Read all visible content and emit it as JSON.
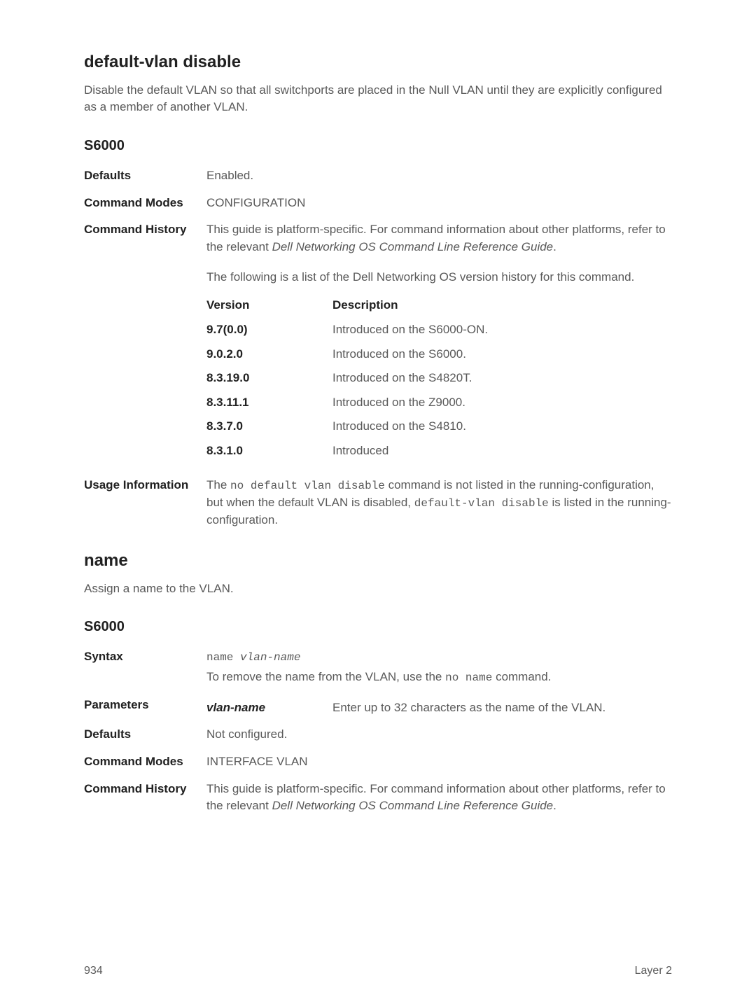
{
  "section1": {
    "title": "default-vlan disable",
    "intro": "Disable the default VLAN so that all switchports are placed in the Null VLAN until they are explicitly configured as a member of another VLAN.",
    "platform": "S6000",
    "defaults_label": "Defaults",
    "defaults_value": "Enabled.",
    "modes_label": "Command Modes",
    "modes_value": "CONFIGURATION",
    "history_label": "Command History",
    "history_intro_1": "This guide is platform-specific. For command information about other platforms, refer to the relevant ",
    "history_intro_italic": "Dell Networking OS Command Line Reference Guide",
    "history_intro_2": ".",
    "history_intro_3": "The following is a list of the Dell Networking OS version history for this command.",
    "vh_header_version": "Version",
    "vh_header_desc": "Description",
    "versions": [
      {
        "v": "9.7(0.0)",
        "d": "Introduced on the S6000-ON."
      },
      {
        "v": "9.0.2.0",
        "d": "Introduced on the S6000."
      },
      {
        "v": "8.3.19.0",
        "d": "Introduced on the S4820T."
      },
      {
        "v": "8.3.11.1",
        "d": "Introduced on the Z9000."
      },
      {
        "v": "8.3.7.0",
        "d": "Introduced on the S4810."
      },
      {
        "v": "8.3.1.0",
        "d": "Introduced"
      }
    ],
    "usage_label": "Usage Information",
    "usage_text_1": "The ",
    "usage_code_1": "no default vlan disable",
    "usage_text_2": " command is not listed in the running-configuration, but when the default VLAN is disabled, ",
    "usage_code_2": "default-vlan disable",
    "usage_text_3": " is listed in the running-configuration."
  },
  "section2": {
    "title": "name",
    "intro": "Assign a name to the VLAN.",
    "platform": "S6000",
    "syntax_label": "Syntax",
    "syntax_code_cmd": "name ",
    "syntax_code_arg": "vlan-name",
    "syntax_note_1": "To remove the name from the VLAN, use the ",
    "syntax_note_code": "no name",
    "syntax_note_2": " command.",
    "params_label": "Parameters",
    "param_name": "vlan-name",
    "param_desc": "Enter up to 32 characters as the name of the VLAN.",
    "defaults_label": "Defaults",
    "defaults_value": "Not configured.",
    "modes_label": "Command Modes",
    "modes_value": "INTERFACE VLAN",
    "history_label": "Command History",
    "history_intro_1": "This guide is platform-specific. For command information about other platforms, refer to the relevant ",
    "history_intro_italic": "Dell Networking OS Command Line Reference Guide",
    "history_intro_2": "."
  },
  "footer": {
    "page": "934",
    "section": "Layer 2"
  }
}
